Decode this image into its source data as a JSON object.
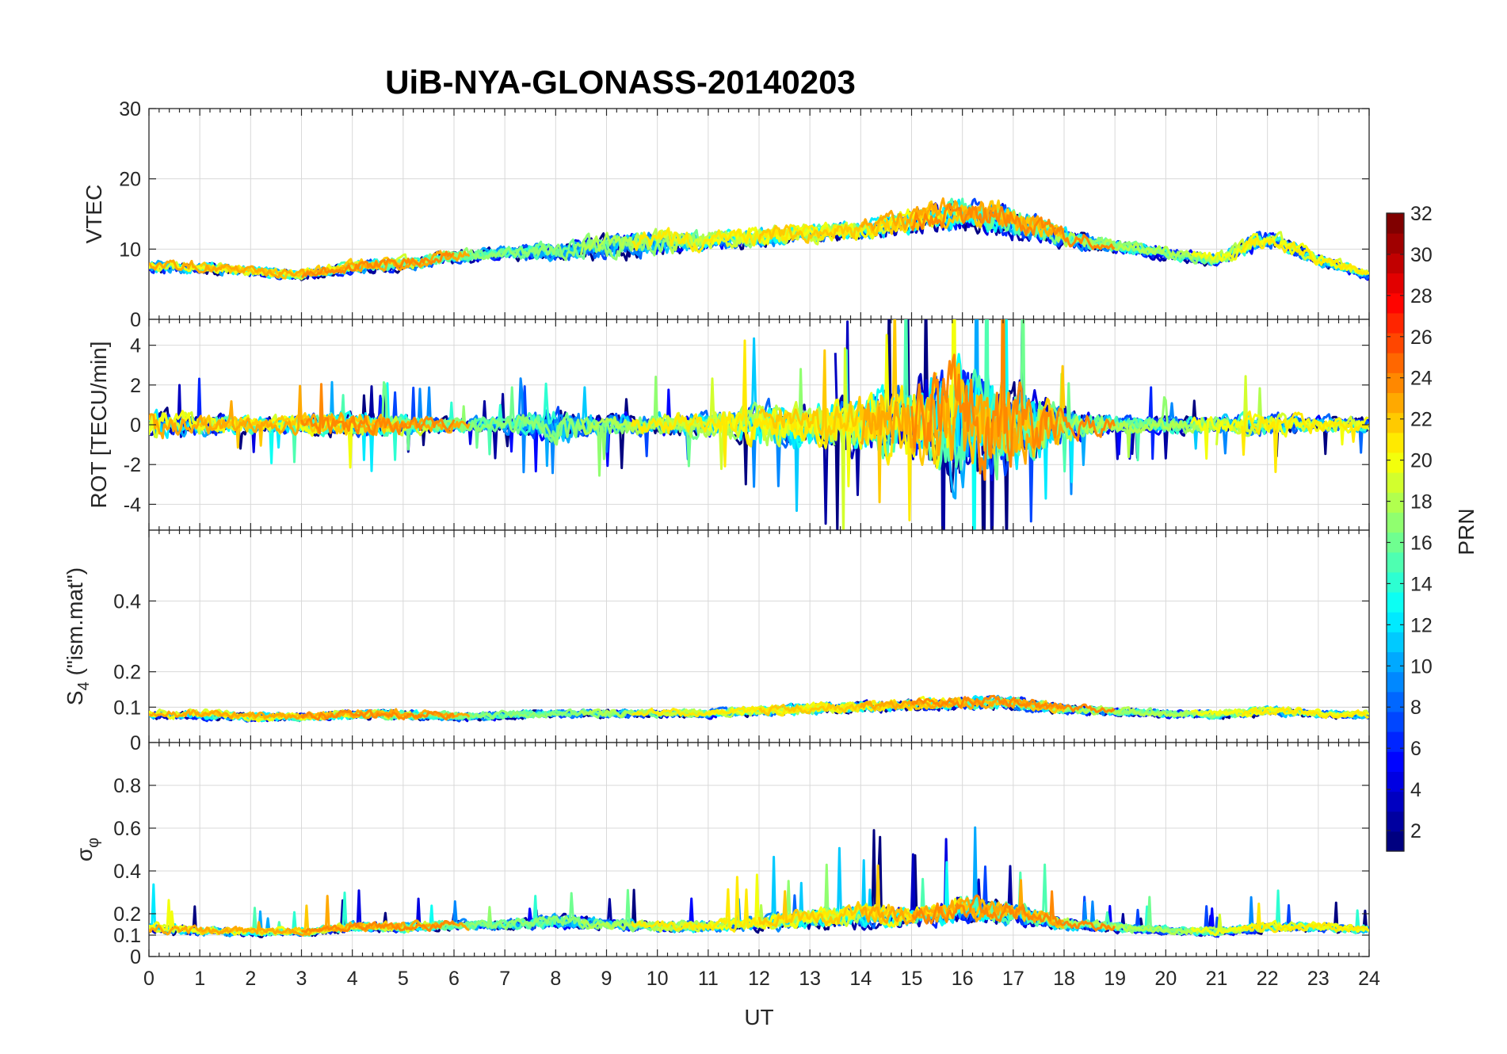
{
  "chart_data": {
    "type": "line",
    "title": "UiB-NYA-GLONASS-20140203",
    "xlabel": "UT",
    "xlim": [
      0,
      24
    ],
    "xticks": [
      0,
      1,
      2,
      3,
      4,
      5,
      6,
      7,
      8,
      9,
      10,
      11,
      12,
      13,
      14,
      15,
      16,
      17,
      18,
      19,
      20,
      21,
      22,
      23,
      24
    ],
    "panels": [
      {
        "id": "vtec",
        "ylabel_main": "VTEC",
        "ylabel_sub": "",
        "ylabel_tail": "",
        "ylim": [
          0,
          30
        ],
        "yticks": [
          0,
          10,
          20,
          30
        ],
        "ytick_labels": [
          "0",
          "10",
          "20",
          "30"
        ],
        "grid": true,
        "envelope": {
          "x": [
            0,
            1,
            2,
            3,
            4,
            5,
            6,
            7,
            8,
            9,
            10,
            11,
            12,
            13,
            14,
            15,
            16,
            17,
            18,
            19,
            20,
            21,
            22,
            23,
            24
          ],
          "base": [
            7,
            7,
            6.5,
            6,
            7,
            7.5,
            8.5,
            9,
            9,
            9.5,
            10,
            10.5,
            11,
            11.5,
            12,
            13,
            14,
            13,
            11,
            10,
            9,
            8,
            11,
            8,
            6
          ],
          "amp": [
            2,
            2,
            1.5,
            1.5,
            2,
            2,
            2,
            2,
            3,
            4,
            4,
            3,
            3,
            3,
            3,
            4,
            5,
            5,
            3,
            2,
            2,
            2,
            3,
            2,
            1.5
          ]
        }
      },
      {
        "id": "rot",
        "ylabel_main": "ROT [TECU/min]",
        "ylabel_sub": "",
        "ylabel_tail": "",
        "ylim": [
          -5.3,
          5.3
        ],
        "yticks": [
          -4,
          -2,
          0,
          2,
          4
        ],
        "ytick_labels": [
          "-4",
          "-2",
          "0",
          "2",
          "4"
        ],
        "grid": true,
        "envelope": {
          "x": [
            0,
            1,
            2,
            3,
            4,
            5,
            6,
            7,
            8,
            9,
            10,
            11,
            12,
            13,
            14,
            15,
            16,
            17,
            18,
            19,
            20,
            21,
            22,
            23,
            24
          ],
          "base": [
            0,
            0,
            0,
            0,
            0,
            0,
            0,
            0,
            0,
            0,
            0,
            0,
            0,
            0,
            0,
            0,
            0,
            0,
            0,
            0,
            0,
            0,
            0,
            0,
            0
          ],
          "amp": [
            1.2,
            0.8,
            0.6,
            0.7,
            0.9,
            0.7,
            0.5,
            0.6,
            1.2,
            0.8,
            0.8,
            0.9,
            1.5,
            1.5,
            2.0,
            3.0,
            4.5,
            3.5,
            1.2,
            0.6,
            0.6,
            0.6,
            0.9,
            0.6,
            0.5
          ]
        }
      },
      {
        "id": "s4",
        "ylabel_main": "S",
        "ylabel_sub": "4",
        "ylabel_tail": " (\"ism.mat\")",
        "ylim": [
          0,
          0.6
        ],
        "yticks": [
          0,
          0.1,
          0.2,
          0.4
        ],
        "ytick_labels": [
          "0",
          "0.1",
          "0.2",
          "0.4"
        ],
        "grid": true,
        "envelope": {
          "x": [
            0,
            1,
            2,
            3,
            4,
            5,
            6,
            7,
            8,
            9,
            10,
            11,
            12,
            13,
            14,
            15,
            16,
            17,
            18,
            19,
            20,
            21,
            22,
            23,
            24
          ],
          "base": [
            0.07,
            0.07,
            0.065,
            0.065,
            0.07,
            0.07,
            0.065,
            0.07,
            0.075,
            0.075,
            0.075,
            0.075,
            0.08,
            0.085,
            0.09,
            0.095,
            0.1,
            0.1,
            0.085,
            0.08,
            0.075,
            0.07,
            0.08,
            0.075,
            0.07
          ],
          "amp": [
            0.03,
            0.03,
            0.025,
            0.025,
            0.03,
            0.03,
            0.025,
            0.025,
            0.025,
            0.025,
            0.025,
            0.025,
            0.03,
            0.035,
            0.035,
            0.035,
            0.04,
            0.04,
            0.03,
            0.025,
            0.025,
            0.025,
            0.03,
            0.025,
            0.025
          ]
        }
      },
      {
        "id": "sigma",
        "ylabel_main": "σ",
        "ylabel_sub": "φ",
        "ylabel_tail": "",
        "ylim": [
          0,
          1
        ],
        "yticks": [
          0,
          0.1,
          0.2,
          0.4,
          0.6,
          0.8
        ],
        "ytick_labels": [
          "0",
          "0.1",
          "0.2",
          "0.4",
          "0.6",
          "0.8"
        ],
        "grid": true,
        "envelope": {
          "x": [
            0,
            1,
            2,
            3,
            4,
            5,
            6,
            7,
            8,
            9,
            10,
            11,
            12,
            13,
            14,
            15,
            16,
            17,
            18,
            19,
            20,
            21,
            22,
            23,
            24
          ],
          "base": [
            0.11,
            0.1,
            0.1,
            0.1,
            0.12,
            0.12,
            0.13,
            0.13,
            0.14,
            0.13,
            0.12,
            0.12,
            0.13,
            0.14,
            0.15,
            0.15,
            0.17,
            0.16,
            0.13,
            0.12,
            0.11,
            0.1,
            0.12,
            0.12,
            0.11
          ],
          "amp": [
            0.06,
            0.05,
            0.04,
            0.04,
            0.05,
            0.05,
            0.05,
            0.05,
            0.08,
            0.06,
            0.06,
            0.06,
            0.08,
            0.1,
            0.12,
            0.1,
            0.14,
            0.12,
            0.06,
            0.05,
            0.04,
            0.04,
            0.05,
            0.05,
            0.04
          ]
        }
      }
    ],
    "series": [
      {
        "prn": 1,
        "spans": [
          [
            0.0,
            10.8
          ],
          [
            11.5,
            24.0
          ]
        ]
      },
      {
        "prn": 2,
        "spans": [
          [
            3.0,
            9.5
          ],
          [
            12.5,
            20.5
          ]
        ]
      },
      {
        "prn": 3,
        "spans": [
          [
            0.0,
            3.0
          ],
          [
            13.5,
            21.0
          ]
        ]
      },
      {
        "prn": 4,
        "spans": [
          [
            2.0,
            6.5
          ],
          [
            14.0,
            18.5
          ]
        ]
      },
      {
        "prn": 5,
        "spans": [
          [
            6.5,
            12.0
          ],
          [
            18.0,
            24.0
          ]
        ]
      },
      {
        "prn": 6,
        "spans": [
          [
            0.0,
            5.0
          ],
          [
            15.0,
            22.0
          ]
        ]
      },
      {
        "prn": 7,
        "spans": [
          [
            4.0,
            10.0
          ],
          [
            16.0,
            24.0
          ]
        ]
      },
      {
        "prn": 8,
        "spans": [
          [
            7.0,
            15.0
          ],
          [
            21.5,
            24.0
          ]
        ]
      },
      {
        "prn": 9,
        "spans": [
          [
            5.0,
            12.5
          ],
          [
            17.0,
            22.0
          ]
        ]
      },
      {
        "prn": 10,
        "spans": [
          [
            0.0,
            8.5
          ],
          [
            15.5,
            19.0
          ]
        ]
      },
      {
        "prn": 11,
        "spans": [
          [
            8.0,
            14.5
          ],
          [
            20.5,
            24.0
          ]
        ]
      },
      {
        "prn": 12,
        "spans": [
          [
            0.0,
            4.5
          ],
          [
            12.0,
            20.0
          ]
        ]
      },
      {
        "prn": 13,
        "spans": [
          [
            1.0,
            6.0
          ],
          [
            10.5,
            17.0
          ]
        ]
      },
      {
        "prn": 14,
        "spans": [
          [
            2.5,
            8.0
          ],
          [
            19.0,
            24.0
          ]
        ]
      },
      {
        "prn": 15,
        "spans": [
          [
            1.0,
            7.8
          ],
          [
            13.0,
            19.5
          ]
        ]
      },
      {
        "prn": 16,
        "spans": [
          [
            4.5,
            11.0
          ],
          [
            16.5,
            21.5
          ]
        ]
      },
      {
        "prn": 17,
        "spans": [
          [
            5.5,
            13.5
          ],
          [
            18.5,
            21.0
          ]
        ]
      },
      {
        "prn": 18,
        "spans": [
          [
            8.5,
            14.0
          ],
          [
            17.5,
            22.0
          ]
        ]
      },
      {
        "prn": 19,
        "spans": [
          [
            0.0,
            5.5
          ],
          [
            10.0,
            14.5
          ],
          [
            21.0,
            24.0
          ]
        ]
      },
      {
        "prn": 20,
        "spans": [
          [
            0.0,
            4.0
          ],
          [
            11.0,
            16.0
          ],
          [
            20.5,
            24.0
          ]
        ]
      },
      {
        "prn": 21,
        "spans": [
          [
            9.5,
            15.5
          ],
          [
            21.5,
            24.0
          ]
        ]
      },
      {
        "prn": 22,
        "spans": [
          [
            1.0,
            5.0
          ],
          [
            12.0,
            18.0
          ]
        ]
      },
      {
        "prn": 23,
        "spans": [
          [
            0.0,
            6.3
          ],
          [
            14.0,
            18.0
          ]
        ]
      },
      {
        "prn": 24,
        "spans": [
          [
            3.0,
            6.0
          ],
          [
            15.0,
            19.0
          ]
        ]
      }
    ],
    "colorbar": {
      "label": "PRN",
      "colormap": "jet",
      "range": [
        1,
        32
      ],
      "levels": 32,
      "ticks": [
        2,
        4,
        6,
        8,
        10,
        12,
        14,
        16,
        18,
        20,
        22,
        24,
        26,
        28,
        30,
        32
      ],
      "tick_labels": [
        "2",
        "4",
        "6",
        "8",
        "10",
        "12",
        "14",
        "16",
        "18",
        "20",
        "22",
        "24",
        "26",
        "28",
        "30",
        "32"
      ]
    }
  }
}
